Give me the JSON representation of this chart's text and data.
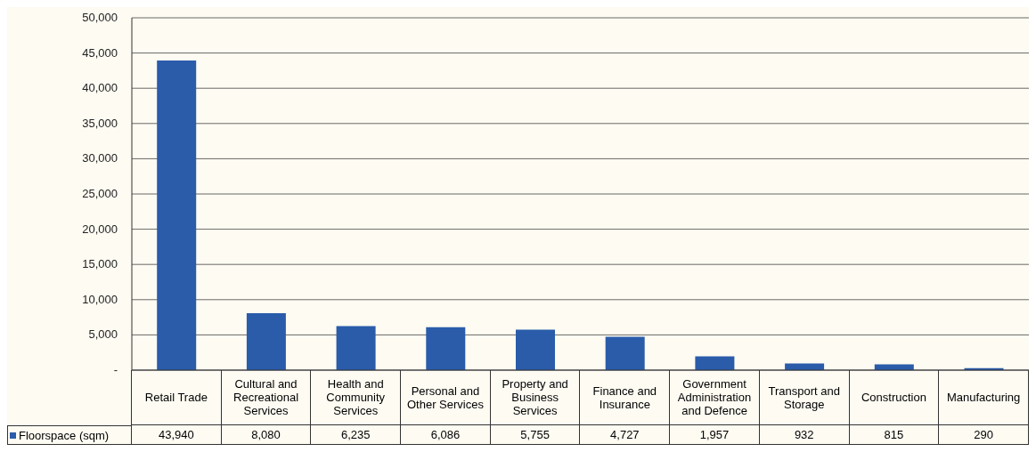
{
  "chart_data": {
    "type": "bar",
    "categories": [
      "Retail Trade",
      "Cultural and Recreational Services",
      "Health and Community Services",
      "Personal and Other Services",
      "Property and Business Services",
      "Finance and Insurance",
      "Government Administration and Defence",
      "Transport and Storage",
      "Construction",
      "Manufacturing"
    ],
    "series": [
      {
        "name": "Floorspace (sqm)",
        "color": "#2a5caa",
        "values": [
          43940,
          8080,
          6235,
          6086,
          5755,
          4727,
          1957,
          932,
          815,
          290
        ]
      }
    ],
    "ylim": [
      0,
      50000
    ],
    "value_labels": [
      "43,940",
      "8,080",
      "6,235",
      "6,086",
      "5,755",
      "4,727",
      "1,957",
      "932",
      "815",
      "290"
    ],
    "yticks": [
      {
        "value": 0,
        "label": "-"
      },
      {
        "value": 5000,
        "label": "5,000"
      },
      {
        "value": 10000,
        "label": "10,000"
      },
      {
        "value": 15000,
        "label": "15,000"
      },
      {
        "value": 20000,
        "label": "20,000"
      },
      {
        "value": 25000,
        "label": "25,000"
      },
      {
        "value": 30000,
        "label": "30,000"
      },
      {
        "value": 35000,
        "label": "35,000"
      },
      {
        "value": 40000,
        "label": "40,000"
      },
      {
        "value": 45000,
        "label": "45,000"
      },
      {
        "value": 50000,
        "label": "50,000"
      }
    ],
    "grid": "y",
    "legend": "bottom"
  }
}
